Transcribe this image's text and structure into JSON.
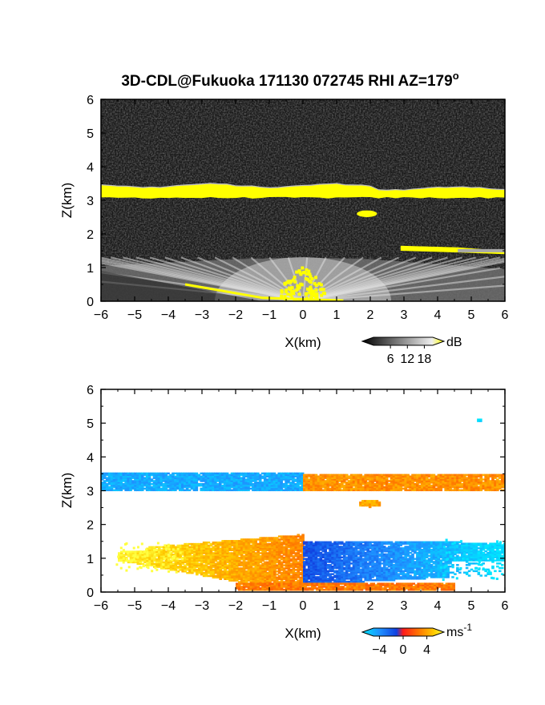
{
  "chart_data": [
    {
      "type": "heatmap",
      "panel": "reflectivity",
      "title_prefix": "3D-CDL@Fukuoka 171130 072745 RHI AZ=179",
      "title_superscript": "o",
      "xlabel": "X(km)",
      "ylabel": "Z(km)",
      "xlim": [
        -6,
        6
      ],
      "ylim": [
        0,
        6
      ],
      "xticks": [
        "-6",
        "-5",
        "-4",
        "-3",
        "-2",
        "-1",
        "0",
        "1",
        "2",
        "3",
        "4",
        "5",
        "6"
      ],
      "yticks": [
        "0",
        "1",
        "2",
        "3",
        "4",
        "5",
        "6"
      ],
      "colorbar": {
        "unit": "dB",
        "ticks": [
          "6",
          "12",
          "18"
        ],
        "range": [
          0,
          21
        ]
      },
      "background": "noise (black/dark gray)",
      "features": [
        {
          "name": "cloud layer",
          "x": [
            -6,
            6
          ],
          "z": [
            3.1,
            3.45
          ],
          "level": "high (yellow)"
        },
        {
          "name": "small cloud patch",
          "x": [
            1.6,
            2.2
          ],
          "z": [
            2.5,
            2.7
          ],
          "level": "high (yellow)"
        },
        {
          "name": "aerosol layer",
          "x": [
            2.9,
            6
          ],
          "z": [
            1.45,
            1.65
          ],
          "level": "medium-high"
        },
        {
          "name": "boundary layer returns",
          "x": [
            -6,
            6
          ],
          "z": [
            0,
            1.3
          ],
          "level": "gray, near-field maximum at X=0"
        }
      ]
    },
    {
      "type": "heatmap",
      "panel": "doppler velocity",
      "xlabel": "X(km)",
      "ylabel": "Z(km)",
      "xlim": [
        -6,
        6
      ],
      "ylim": [
        0,
        6
      ],
      "xticks": [
        "-6",
        "-5",
        "-4",
        "-3",
        "-2",
        "-1",
        "0",
        "1",
        "2",
        "3",
        "4",
        "5",
        "6"
      ],
      "yticks": [
        "0",
        "1",
        "2",
        "3",
        "4",
        "5",
        "6"
      ],
      "colorbar": {
        "unit": "ms",
        "unit_superscript": "-1",
        "ticks": [
          "-4",
          "0",
          "4"
        ],
        "range": [
          -5,
          5
        ]
      },
      "features": [
        {
          "name": "cloud layer (left)",
          "x": [
            -6,
            0
          ],
          "z": [
            3.0,
            3.5
          ],
          "velocity": -3.5
        },
        {
          "name": "cloud layer (right)",
          "x": [
            0,
            6
          ],
          "z": [
            3.0,
            3.45
          ],
          "velocity": 2.5
        },
        {
          "name": "small patch",
          "x": [
            1.6,
            2.3
          ],
          "z": [
            2.5,
            2.7
          ],
          "velocity": 3.0
        },
        {
          "name": "boundary layer (left)",
          "x": [
            -5.5,
            0
          ],
          "z": [
            0.1,
            1.7
          ],
          "velocity": 4.0
        },
        {
          "name": "boundary layer (right)",
          "x": [
            0,
            6
          ],
          "z": [
            0.2,
            1.5
          ],
          "velocity": -3.5
        },
        {
          "name": "near-ground band",
          "x": [
            -2,
            4.5
          ],
          "z": [
            0.05,
            0.25
          ],
          "velocity": 2.0
        },
        {
          "name": "isolated echo",
          "x": [
            5.1,
            5.3
          ],
          "z": [
            5.0,
            5.1
          ],
          "velocity": -4.5
        }
      ]
    }
  ]
}
